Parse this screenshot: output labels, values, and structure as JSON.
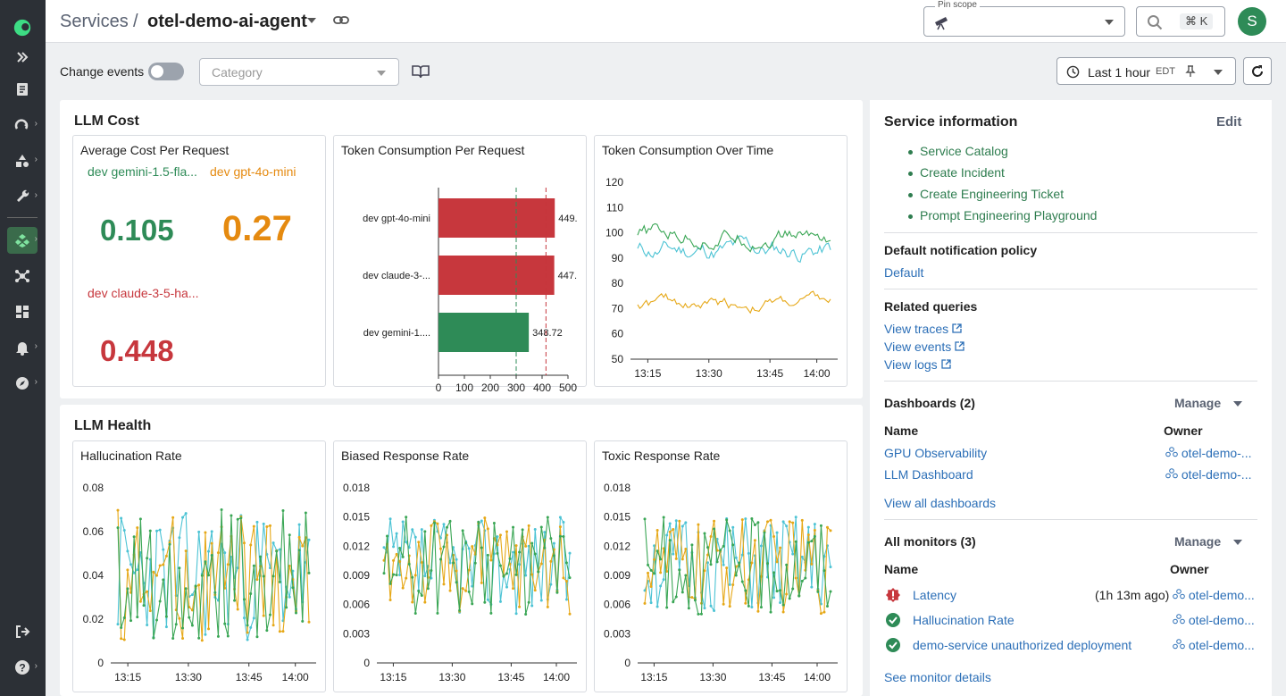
{
  "header": {
    "breadcrumb_root": "Services",
    "breadcrumb_sep": "/",
    "service_name": "otel-demo-ai-agent",
    "pin_scope_label": "Pin scope",
    "search_shortcut": "⌘ K",
    "avatar_letter": "S"
  },
  "filters": {
    "change_events_label": "Change events",
    "category_placeholder": "Category",
    "time_range": "Last 1 hour",
    "timezone": "EDT"
  },
  "llm_cost": {
    "title": "LLM Cost",
    "avg_cost": {
      "title": "Average Cost Per Request",
      "items": [
        {
          "label": "dev gemini-1.5-fla...",
          "value": "0.105",
          "color": "#2e8b57"
        },
        {
          "label": "dev gpt-4o-mini",
          "value": "0.27",
          "color": "#e58a10"
        },
        {
          "label": "dev claude-3-5-ha...",
          "value": "0.448",
          "color": "#c7373d"
        }
      ]
    },
    "token_per_request": {
      "title": "Token Consumption Per Request"
    },
    "token_over_time": {
      "title": "Token Consumption Over Time"
    }
  },
  "llm_health": {
    "title": "LLM Health",
    "hallucination": {
      "title": "Hallucination Rate"
    },
    "biased": {
      "title": "Biased Response Rate"
    },
    "toxic": {
      "title": "Toxic Response Rate"
    }
  },
  "chart_data": [
    {
      "type": "bar",
      "title": "Token Consumption Per Request",
      "categories": [
        "dev gpt-4o-mini",
        "dev claude-3-...",
        "dev gemini-1...."
      ],
      "values": [
        449,
        447,
        348.72
      ],
      "value_labels": [
        "449.",
        "447.",
        "348.72"
      ],
      "colors": [
        "#c7373d",
        "#c7373d",
        "#2e8b57"
      ],
      "xlim": [
        0,
        500
      ],
      "xticks": [
        "0",
        "100",
        "200",
        "300",
        "400",
        "500"
      ],
      "thresholds": [
        {
          "value": 300,
          "color": "#2e8b57"
        },
        {
          "value": 415,
          "color": "#c7373d"
        }
      ]
    },
    {
      "type": "line",
      "title": "Token Consumption Over Time",
      "ylim": [
        50,
        120
      ],
      "yticks": [
        "50",
        "60",
        "70",
        "80",
        "90",
        "100",
        "110",
        "120"
      ],
      "xticks": [
        "13:15",
        "13:30",
        "13:45",
        "14:00"
      ],
      "series": [
        {
          "color": "#4cc3d4",
          "level": 93,
          "amp": 9
        },
        {
          "color": "#3aa655",
          "level": 99,
          "amp": 8
        },
        {
          "color": "#e6a817",
          "level": 72,
          "amp": 6
        }
      ]
    },
    {
      "type": "line",
      "title": "Hallucination Rate",
      "ylim": [
        0,
        0.08
      ],
      "yticks": [
        "0",
        "0.02",
        "0.04",
        "0.06",
        "0.08"
      ],
      "xticks": [
        "13:15",
        "13:30",
        "13:45",
        "14:00"
      ],
      "series": [
        {
          "color": "#4cc3d4",
          "min": 0.01,
          "max": 0.07
        },
        {
          "color": "#e6a817",
          "min": 0.01,
          "max": 0.07
        },
        {
          "color": "#3aa655",
          "min": 0.01,
          "max": 0.07
        }
      ]
    },
    {
      "type": "line",
      "title": "Biased Response Rate",
      "ylim": [
        0,
        0.018
      ],
      "yticks": [
        "0",
        "0.003",
        "0.006",
        "0.009",
        "0.012",
        "0.015",
        "0.018"
      ],
      "xticks": [
        "13:15",
        "13:30",
        "13:45",
        "14:00"
      ],
      "series": [
        {
          "color": "#4cc3d4",
          "min": 0.005,
          "max": 0.015
        },
        {
          "color": "#e6a817",
          "min": 0.005,
          "max": 0.015
        },
        {
          "color": "#3aa655",
          "min": 0.005,
          "max": 0.015
        }
      ]
    },
    {
      "type": "line",
      "title": "Toxic Response Rate",
      "ylim": [
        0,
        0.018
      ],
      "yticks": [
        "0",
        "0.003",
        "0.006",
        "0.009",
        "0.012",
        "0.015",
        "0.018"
      ],
      "xticks": [
        "13:15",
        "13:30",
        "13:45",
        "14:00"
      ],
      "series": [
        {
          "color": "#4cc3d4",
          "min": 0.005,
          "max": 0.015
        },
        {
          "color": "#e6a817",
          "min": 0.005,
          "max": 0.015
        },
        {
          "color": "#3aa655",
          "min": 0.005,
          "max": 0.015
        }
      ]
    }
  ],
  "side": {
    "title": "Service information",
    "edit": "Edit",
    "links": [
      "Service Catalog",
      "Create Incident",
      "Create Engineering Ticket",
      "Prompt Engineering Playground"
    ],
    "notif_title": "Default notification policy",
    "notif_value": "Default",
    "queries_title": "Related queries",
    "queries": [
      "View traces",
      "View events",
      "View logs"
    ],
    "dash_title": "Dashboards (2)",
    "manage": "Manage",
    "col_name": "Name",
    "col_owner": "Owner",
    "dashboards": [
      {
        "name": "GPU Observability",
        "owner": "otel-demo-..."
      },
      {
        "name": "LLM Dashboard",
        "owner": "otel-demo-..."
      }
    ],
    "view_all": "View all dashboards",
    "mon_title": "All monitors (3)",
    "monitors": [
      {
        "name": "Latency",
        "time": "(1h 13m ago)",
        "owner": "otel-demo...",
        "status": "alert"
      },
      {
        "name": "Hallucination Rate",
        "time": "",
        "owner": "otel-demo...",
        "status": "ok"
      },
      {
        "name": "demo-service unauthorized deployment",
        "time": "",
        "owner": "otel-demo...",
        "status": "ok"
      }
    ],
    "see_monitor": "See monitor details"
  },
  "colors": {
    "accent_green": "#2e8b57",
    "link_blue": "#2c6fb7",
    "nav_bg": "#2c3036",
    "alert_red": "#c7373d"
  }
}
